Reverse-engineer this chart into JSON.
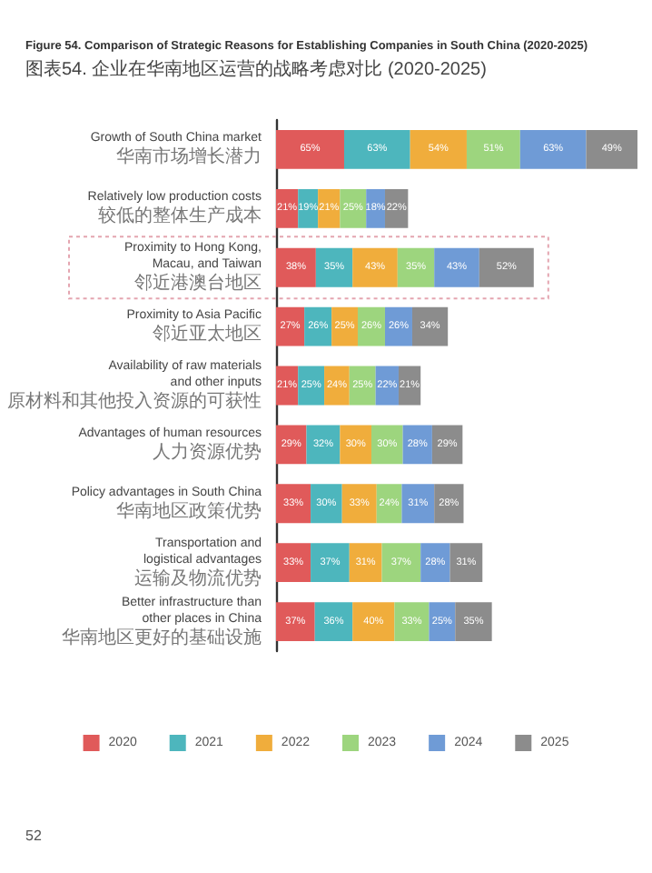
{
  "chart_data": {
    "type": "bar",
    "orientation": "horizontal",
    "stacked": true,
    "tick_labels": "y",
    "legend": "bottom",
    "title": "Figure 54. Comparison of Strategic Reasons for Establishing Companies in South China (2020-2025)",
    "subtitle": "图表54. 企业在华南地区运营的战略考虑对比 (2020-2025)",
    "annotations": [
      "52"
    ],
    "categories": [
      "Growth of South China market\n华南市场增长潜力",
      "Relatively low production costs\n较低的整体生产成本",
      "Proximity to Hong Kong,\nMacau, and Taiwan\n邻近港澳台地区",
      "Proximity to Asia Pacific\n邻近亚太地区",
      "Availability of raw materials\nand other inputs\n原材料和其他投入资源的可获性",
      "Advantages of human resources\n人力资源优势",
      "Policy advantages in South China\n华南地区政策优势",
      "Transportation and\nlogistical advantages\n运输及物流优势",
      "Better infrastructure than\nother places in China\n华南地区更好的基础设施"
    ],
    "series": [
      {
        "name": "2020",
        "color": "#e05a5a",
        "values": [
          65,
          21,
          38,
          27,
          21,
          29,
          33,
          33,
          37
        ],
        "value_labels": [
          "65%",
          "21%",
          "38%",
          "27%",
          "21%",
          "29%",
          "33%",
          "33%",
          "37%"
        ]
      },
      {
        "name": "2021",
        "color": "#4db6bd",
        "values": [
          63,
          19,
          35,
          26,
          25,
          32,
          30,
          37,
          36
        ],
        "value_labels": [
          "63%",
          "19%",
          "35%",
          "26%",
          "25%",
          "32%",
          "30%",
          "37%",
          "36%"
        ]
      },
      {
        "name": "2022",
        "color": "#f0ad3c",
        "values": [
          54,
          21,
          43,
          25,
          24,
          30,
          33,
          31,
          40
        ],
        "value_labels": [
          "54%",
          "21%",
          "43%",
          "25%",
          "24%",
          "30%",
          "33%",
          "31%",
          "40%"
        ]
      },
      {
        "name": "2023",
        "color": "#9dd57e",
        "values": [
          51,
          25,
          35,
          26,
          25,
          30,
          24,
          37,
          33
        ],
        "value_labels": [
          "51%",
          "25%",
          "35%",
          "26%",
          "25%",
          "30%",
          "24%",
          "37%",
          "33%"
        ]
      },
      {
        "name": "2024",
        "color": "#6f9bd6",
        "values": [
          63,
          18,
          43,
          26,
          22,
          28,
          31,
          28,
          25
        ],
        "value_labels": [
          "63%",
          "18%",
          "43%",
          "26%",
          "22%",
          "28%",
          "31%",
          "28%",
          "25%"
        ]
      },
      {
        "name": "2025",
        "color": "#8c8c8c",
        "values": [
          49,
          22,
          52,
          34,
          21,
          29,
          28,
          31,
          35
        ],
        "value_labels": [
          "49%",
          "22%",
          "52%",
          "34%",
          "21%",
          "29%",
          "28%",
          "31%",
          "35%"
        ]
      }
    ]
  }
}
